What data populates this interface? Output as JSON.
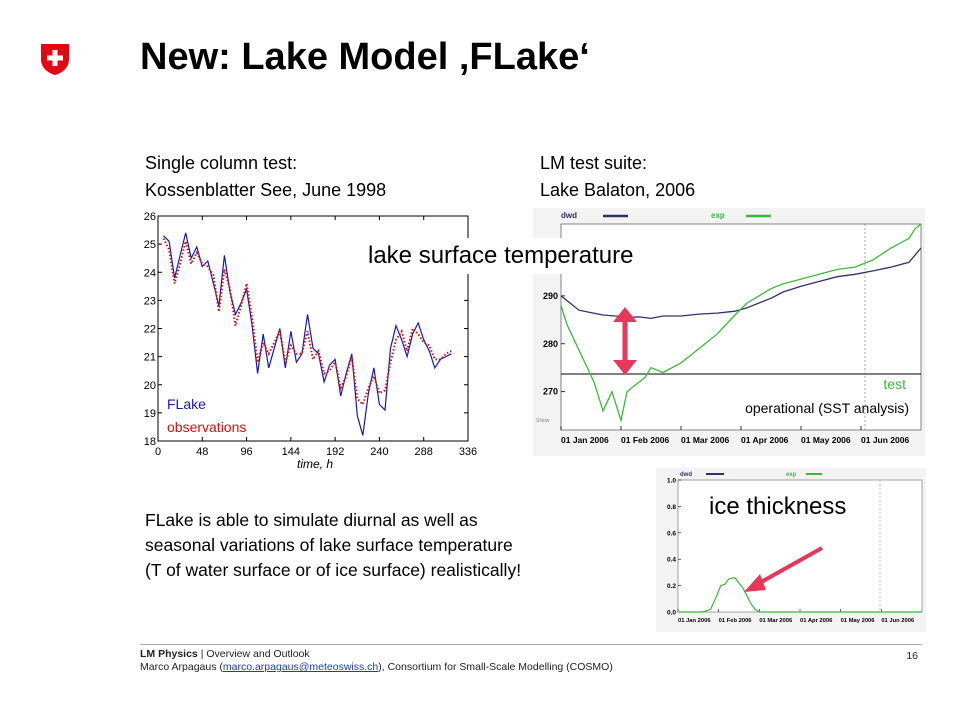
{
  "slide": {
    "title": "New: Lake Model ‚FLake‘",
    "logo": "swiss-cross-shield",
    "accent_color": "#e30613"
  },
  "left_caption": {
    "line1": "Single column test:",
    "line2": "Kossenblatter See, June 1998"
  },
  "right_caption": {
    "line1": "LM test suite:",
    "line2": "Lake Balaton, 2006"
  },
  "overlay_labels": {
    "lake_surface_temperature": "lake surface temperature",
    "ice_thickness": "ice thickness"
  },
  "right_chart": {
    "legend_dwd": "dwd",
    "legend_exp": "exp",
    "test_label": "test",
    "operational_label": "operational (SST analysis)",
    "snow_label": "SNow",
    "colors": {
      "dwd": "#303070",
      "exp": "#3cb83c",
      "arrow": "#e8385a",
      "test": "#3cb83c"
    }
  },
  "body_text": {
    "line1": "FLake is able to simulate diurnal as well as",
    "line2": "seasonal variations of lake surface temperature",
    "line3": "(T of water surface or of ice surface) realistically!"
  },
  "footer": {
    "org": "LM Physics",
    "separator": " | ",
    "section": "Overview and Outlook",
    "author_prefix": "Marco Arpagaus (",
    "email": "marco.arpagaus@meteoswiss.ch",
    "author_suffix": "), Consortium for Small-Scale Modelling (COSMO)",
    "page": "16"
  },
  "chart_data": [
    {
      "type": "line",
      "xlabel": "time, h",
      "ylabel": "",
      "xlim": [
        0,
        336
      ],
      "ylim": [
        18,
        26
      ],
      "x_ticks": [
        "0",
        "48",
        "96",
        "144",
        "192",
        "240",
        "288",
        "336"
      ],
      "y_ticks": [
        "18",
        "19",
        "20",
        "21",
        "22",
        "23",
        "24",
        "25",
        "26"
      ],
      "legend": [
        "FLake",
        "observations"
      ],
      "legend_position": "bottom-left",
      "series": [
        {
          "name": "FLake",
          "color": "#1a1aa8",
          "style": "solid",
          "x": [
            6,
            12,
            18,
            24,
            30,
            36,
            42,
            48,
            54,
            60,
            66,
            72,
            78,
            84,
            90,
            96,
            102,
            108,
            114,
            120,
            126,
            132,
            138,
            144,
            150,
            156,
            162,
            168,
            174,
            180,
            186,
            192,
            198,
            204,
            210,
            216,
            222,
            228,
            234,
            240,
            246,
            252,
            258,
            264,
            270,
            276,
            282,
            288,
            294,
            300,
            306,
            312,
            318
          ],
          "y": [
            25.3,
            25.1,
            23.8,
            24.6,
            25.4,
            24.5,
            24.9,
            24.2,
            24.4,
            23.6,
            22.8,
            24.6,
            23.3,
            22.5,
            22.9,
            23.4,
            22.1,
            20.4,
            21.8,
            20.6,
            21.3,
            22.0,
            20.6,
            21.9,
            20.8,
            21.1,
            22.5,
            21.3,
            21.1,
            20.1,
            20.7,
            20.9,
            19.6,
            20.4,
            21.1,
            18.9,
            18.2,
            19.7,
            20.6,
            19.3,
            19.1,
            21.3,
            22.1,
            21.6,
            21.0,
            21.8,
            22.2,
            21.6,
            21.2,
            20.6,
            20.9,
            21.0,
            21.1
          ]
        },
        {
          "name": "observations",
          "color": "#c81414",
          "style": "dotted",
          "x": [
            6,
            12,
            18,
            24,
            30,
            36,
            42,
            48,
            54,
            60,
            66,
            72,
            78,
            84,
            90,
            96,
            102,
            108,
            114,
            120,
            126,
            132,
            138,
            144,
            150,
            156,
            162,
            168,
            174,
            180,
            186,
            192,
            198,
            204,
            210,
            216,
            222,
            228,
            234,
            240,
            246,
            252,
            258,
            264,
            270,
            276,
            282,
            288,
            294,
            300,
            306,
            312,
            318
          ],
          "y": [
            25.2,
            24.8,
            23.6,
            24.3,
            25.1,
            24.3,
            24.7,
            24.3,
            24.2,
            23.9,
            22.6,
            24.1,
            23.4,
            22.1,
            22.8,
            23.6,
            22.4,
            20.8,
            21.5,
            21.1,
            21.5,
            21.9,
            20.8,
            21.4,
            21.1,
            21.1,
            21.9,
            20.9,
            21.2,
            20.4,
            20.5,
            20.8,
            19.9,
            20.3,
            21.0,
            19.5,
            19.3,
            19.9,
            20.3,
            19.7,
            19.8,
            20.8,
            21.6,
            21.9,
            21.2,
            22.0,
            21.8,
            21.5,
            21.4,
            20.9,
            20.9,
            21.1,
            21.2
          ]
        }
      ]
    },
    {
      "type": "line",
      "title": "",
      "ylabel": "",
      "ylim": [
        262,
        305
      ],
      "y_ticks": [
        "270",
        "280",
        "290"
      ],
      "categories": [
        "01 Jan 2006",
        "01 Feb 2006",
        "01 Mar 2006",
        "01 Apr 2006",
        "01 May 2006",
        "01 Jun 2006"
      ],
      "series": [
        {
          "name": "dwd",
          "color": "#303070",
          "x": [
            0,
            0.15,
            0.3,
            0.5,
            0.7,
            0.9,
            1.0,
            1.1,
            1.3,
            1.5,
            1.7,
            2.0,
            2.3,
            2.6,
            2.9,
            3.1,
            3.3,
            3.5,
            3.7,
            4.0,
            4.3,
            4.6,
            4.9,
            5.2,
            5.5,
            5.8,
            6.0
          ],
          "y": [
            290,
            288.5,
            287,
            286.5,
            286,
            285.8,
            285.7,
            285.5,
            285.6,
            285.3,
            285.8,
            285.8,
            286.2,
            286.4,
            286.8,
            287.5,
            288.5,
            289.5,
            290.8,
            292,
            293,
            294,
            294.5,
            295.2,
            296,
            297,
            300
          ]
        },
        {
          "name": "exp",
          "color": "#3cb83c",
          "x": [
            0,
            0.1,
            0.25,
            0.4,
            0.55,
            0.7,
            0.85,
            1.0,
            1.1,
            1.2,
            1.3,
            1.4,
            1.5,
            1.7,
            2.0,
            2.3,
            2.6,
            2.9,
            3.1,
            3.3,
            3.5,
            3.7,
            4.0,
            4.3,
            4.6,
            4.9,
            5.2,
            5.5,
            5.8,
            5.9,
            6.0
          ],
          "y": [
            288,
            284,
            280,
            276,
            272,
            266,
            270,
            264,
            270,
            271,
            272,
            273,
            275,
            274,
            276,
            279,
            282,
            286,
            288.5,
            290,
            291.5,
            292.5,
            293.5,
            294.5,
            295.5,
            296,
            297.5,
            300,
            302,
            304,
            305
          ]
        }
      ]
    },
    {
      "type": "line",
      "ylim": [
        0,
        1.0
      ],
      "y_ticks": [
        "0.0",
        "0.2",
        "0.4",
        "0.6",
        "0.8",
        "1.0"
      ],
      "categories": [
        "01 Jan 2006",
        "01 Feb 2006",
        "01 Mar 2006",
        "01 Apr 2006",
        "01 May 2006",
        "01 Jun 2006"
      ],
      "series": [
        {
          "name": "exp",
          "color": "#3cb83c",
          "x": [
            0,
            0.6,
            0.8,
            0.95,
            1.05,
            1.15,
            1.25,
            1.4,
            1.5,
            1.6,
            1.7,
            1.8,
            1.9,
            2.0,
            2.2,
            6.0
          ],
          "y": [
            0,
            0,
            0.02,
            0.12,
            0.2,
            0.21,
            0.25,
            0.26,
            0.22,
            0.18,
            0.12,
            0.06,
            0.02,
            0,
            0,
            0
          ]
        }
      ]
    }
  ]
}
